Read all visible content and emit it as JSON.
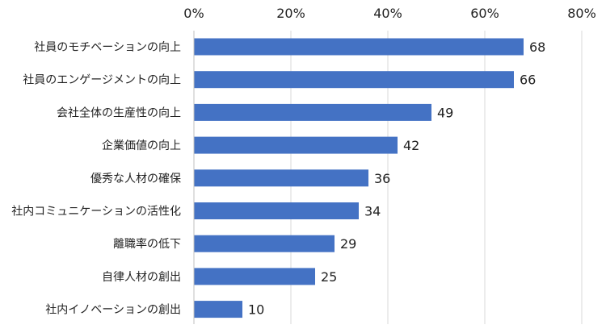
{
  "chart_data": {
    "type": "bar",
    "orientation": "horizontal",
    "title": "",
    "xlabel": "",
    "ylabel": "",
    "xlim": [
      0,
      80
    ],
    "x_ticks": [
      {
        "value": 0,
        "label": "0%"
      },
      {
        "value": 20,
        "label": "20%"
      },
      {
        "value": 40,
        "label": "40%"
      },
      {
        "value": 60,
        "label": "60%"
      },
      {
        "value": 80,
        "label": "80%"
      }
    ],
    "x_axis_position": "top",
    "grid": true,
    "legend": "none",
    "bar_color": "#4472C4",
    "grid_color": "#D9D9D9",
    "categories": [
      "社員のモチベーションの向上",
      "社員のエンゲージメントの向上",
      "会社全体の生産性の向上",
      "企業価値の向上",
      "優秀な人材の確保",
      "社内コミュニケーションの活性化",
      "離職率の低下",
      "自律人材の創出",
      "社内イノベーションの創出"
    ],
    "values": [
      68,
      66,
      49,
      42,
      36,
      34,
      29,
      25,
      10
    ],
    "data_labels": [
      "68",
      "66",
      "49",
      "42",
      "36",
      "34",
      "29",
      "25",
      "10"
    ]
  }
}
